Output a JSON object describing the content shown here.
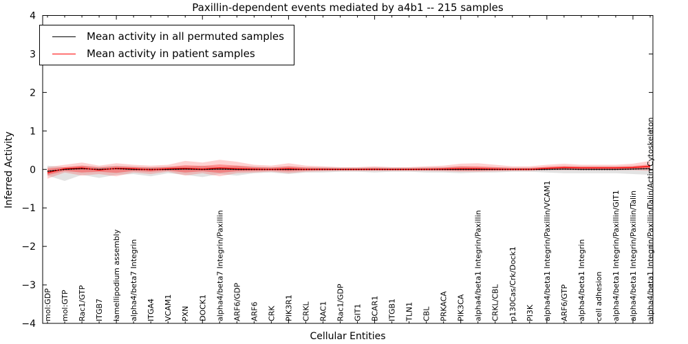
{
  "title": "Paxillin-dependent events mediated by a4b1 -- 215 samples",
  "axes": {
    "ylabel": "Inferred Activity",
    "xlabel": "Cellular Entities",
    "yticks": [
      {
        "v": 4,
        "label": "4"
      },
      {
        "v": 3,
        "label": "3"
      },
      {
        "v": 2,
        "label": "2"
      },
      {
        "v": 1,
        "label": "1"
      },
      {
        "v": 0,
        "label": "0"
      },
      {
        "v": -1,
        "label": "−1"
      },
      {
        "v": -2,
        "label": "−2"
      },
      {
        "v": -3,
        "label": "−3"
      },
      {
        "v": -4,
        "label": "−4"
      }
    ],
    "ylim": [
      -4,
      4
    ]
  },
  "legend": {
    "items": [
      {
        "label": "Mean activity in all permuted samples",
        "color": "#000000"
      },
      {
        "label": "Mean activity in patient samples",
        "color": "#ff0000"
      }
    ]
  },
  "chart_data": {
    "type": "line",
    "title": "Paxillin-dependent events mediated by a4b1 -- 215 samples",
    "xlabel": "Cellular Entities",
    "ylabel": "Inferred Activity",
    "ylim": [
      -4,
      4
    ],
    "grid": false,
    "legend_position": "upper left",
    "categories": [
      "mol:GDP",
      "mol:GTP",
      "Rac1/GTP",
      "ITGB7",
      "lamellipodium assembly",
      "alpha4/beta7 Integrin",
      "ITGA4",
      "VCAM1",
      "PXN",
      "DOCK1",
      "alpha4/beta7 Integrin/Paxillin",
      "ARF6/GDP",
      "ARF6",
      "CRK",
      "PIK3R1",
      "CRKL",
      "RAC1",
      "Rac1/GDP",
      "GIT1",
      "BCAR1",
      "ITGB1",
      "TLN1",
      "CBL",
      "PRKACA",
      "PIK3CA",
      "alpha4/beta1 Integrin/Paxillin",
      "CRKL/CBL",
      "p130Cas/Crk/Dock1",
      "PI3K",
      "alpha4/beta1 Integrin/Paxillin/VCAM1",
      "ARF6/GTP",
      "alpha4/beta1 Integrin",
      "cell adhesion",
      "alpha4/beta1 Integrin/Paxillin/GIT1",
      "alpha4/beta1 Integrin/Paxillin/Talin",
      "alpha4/beta1 Integrin/Paxillin/Talin/Actin Cytoskeleton"
    ],
    "series": [
      {
        "name": "Mean activity in all permuted samples",
        "color": "#000000",
        "values": [
          -0.05,
          0.0,
          0.02,
          0.0,
          0.02,
          0.0,
          0.0,
          0.0,
          0.01,
          0.0,
          0.01,
          0.0,
          0.0,
          0.0,
          0.0,
          0.0,
          0.0,
          0.0,
          0.0,
          0.0,
          0.0,
          0.0,
          0.0,
          0.0,
          0.0,
          0.0,
          0.0,
          0.0,
          0.0,
          0.0,
          0.01,
          0.0,
          0.0,
          0.0,
          0.01,
          0.02
        ]
      },
      {
        "name": "Mean activity in patient samples",
        "color": "#ff0000",
        "values": [
          -0.09,
          0.02,
          0.04,
          -0.02,
          0.03,
          0.02,
          -0.01,
          0.02,
          0.03,
          0.01,
          0.04,
          0.02,
          0.01,
          0.0,
          0.02,
          0.0,
          0.0,
          0.0,
          0.0,
          0.0,
          0.0,
          0.0,
          0.0,
          0.01,
          0.02,
          0.02,
          0.01,
          0.0,
          0.0,
          0.03,
          0.05,
          0.04,
          0.04,
          0.04,
          0.05,
          0.08
        ]
      }
    ],
    "bands": [
      {
        "name": "permuted-samples-spread",
        "color": "#999999",
        "opacity": 0.28,
        "upper": [
          0.1,
          0.06,
          0.1,
          0.07,
          0.1,
          0.08,
          0.06,
          0.08,
          0.08,
          0.1,
          0.06,
          0.1,
          0.08,
          0.06,
          0.08,
          0.06,
          0.06,
          0.05,
          0.05,
          0.06,
          0.05,
          0.05,
          0.06,
          0.06,
          0.08,
          0.06,
          0.06,
          0.05,
          0.05,
          0.06,
          0.08,
          0.08,
          0.08,
          0.08,
          0.08,
          0.1
        ],
        "lower": [
          -0.16,
          -0.3,
          -0.14,
          -0.22,
          -0.14,
          -0.12,
          -0.18,
          -0.1,
          -0.14,
          -0.2,
          -0.12,
          -0.16,
          -0.1,
          -0.08,
          -0.12,
          -0.08,
          -0.08,
          -0.06,
          -0.06,
          -0.08,
          -0.06,
          -0.06,
          -0.08,
          -0.08,
          -0.1,
          -0.08,
          -0.08,
          -0.06,
          -0.06,
          -0.08,
          -0.1,
          -0.1,
          -0.1,
          -0.1,
          -0.12,
          -0.14
        ]
      },
      {
        "name": "patient-samples-spread-outer",
        "color": "#ff0000",
        "opacity": 0.18,
        "upper": [
          0.06,
          0.12,
          0.18,
          0.1,
          0.16,
          0.12,
          0.1,
          0.12,
          0.22,
          0.18,
          0.25,
          0.2,
          0.12,
          0.1,
          0.16,
          0.1,
          0.08,
          0.06,
          0.06,
          0.08,
          0.06,
          0.06,
          0.08,
          0.1,
          0.15,
          0.16,
          0.12,
          0.08,
          0.08,
          0.12,
          0.15,
          0.12,
          0.12,
          0.12,
          0.15,
          0.22
        ],
        "lower": [
          -0.24,
          -0.08,
          -0.16,
          -0.12,
          -0.18,
          -0.08,
          -0.12,
          -0.06,
          -0.16,
          -0.1,
          -0.18,
          -0.1,
          -0.08,
          -0.06,
          -0.1,
          -0.06,
          -0.05,
          -0.04,
          -0.04,
          -0.04,
          -0.04,
          -0.04,
          -0.04,
          -0.05,
          -0.06,
          -0.06,
          -0.05,
          -0.04,
          -0.04,
          -0.02,
          -0.02,
          -0.02,
          -0.02,
          -0.02,
          -0.02,
          -0.04
        ]
      },
      {
        "name": "patient-samples-spread-inner",
        "color": "#ff0000",
        "opacity": 0.3,
        "upper": [
          0.02,
          0.06,
          0.1,
          0.05,
          0.08,
          0.06,
          0.05,
          0.06,
          0.11,
          0.09,
          0.13,
          0.1,
          0.06,
          0.05,
          0.08,
          0.05,
          0.04,
          0.03,
          0.03,
          0.04,
          0.03,
          0.03,
          0.04,
          0.05,
          0.08,
          0.08,
          0.06,
          0.04,
          0.04,
          0.07,
          0.09,
          0.07,
          0.07,
          0.07,
          0.09,
          0.13
        ],
        "lower": [
          -0.15,
          -0.04,
          -0.08,
          -0.06,
          -0.09,
          -0.04,
          -0.06,
          -0.03,
          -0.08,
          -0.05,
          -0.09,
          -0.05,
          -0.04,
          -0.03,
          -0.05,
          -0.03,
          -0.02,
          -0.02,
          -0.02,
          -0.02,
          -0.02,
          -0.02,
          -0.02,
          -0.02,
          -0.03,
          -0.03,
          -0.02,
          -0.02,
          -0.02,
          0.0,
          0.01,
          0.0,
          0.0,
          0.0,
          0.01,
          0.02
        ]
      }
    ]
  }
}
